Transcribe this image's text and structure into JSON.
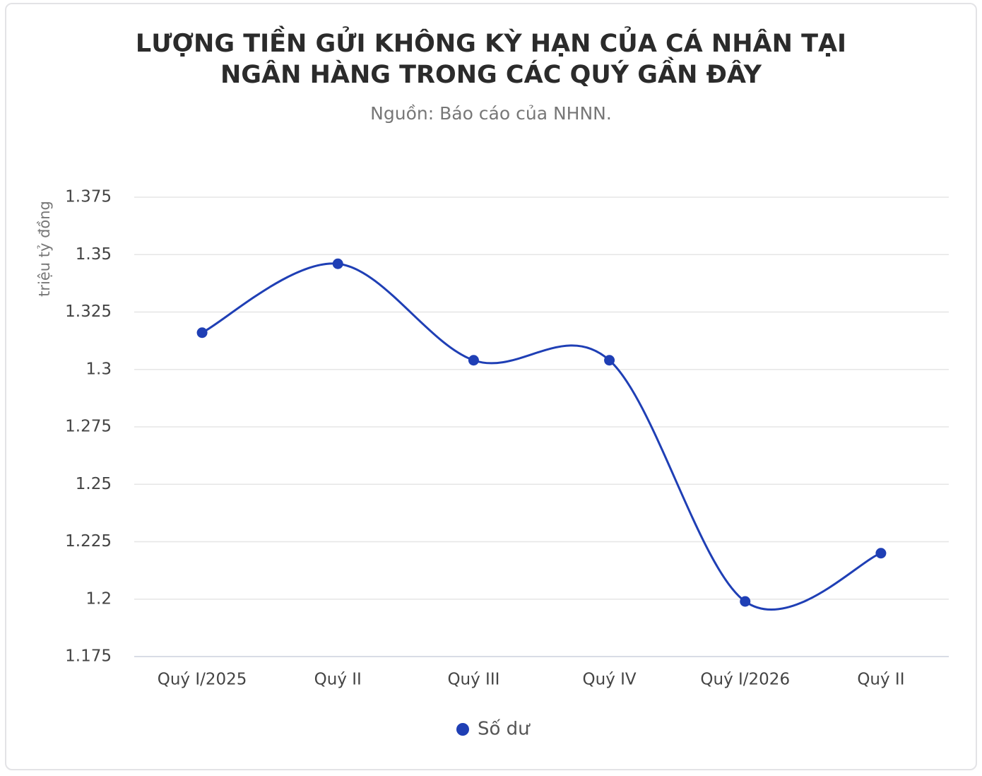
{
  "chart_data": {
    "type": "line",
    "title": "LƯỢNG TIỀN GỬI KHÔNG KỲ HẠN CỦA CÁ NHÂN TẠI NGÂN HÀNG TRONG CÁC QUÝ GẦN ĐÂY",
    "subtitle": "Nguồn: Báo cáo của NHNN.",
    "y_label": "triệu tỷ đồng",
    "categories": [
      "Quý I/2025",
      "Quý II",
      "Quý III",
      "Quý IV",
      "Quý I/2026",
      "Quý II"
    ],
    "series": [
      {
        "name": "Số dư",
        "color": "#1f3fb5",
        "values": [
          1.316,
          1.346,
          1.304,
          1.304,
          1.199,
          1.22
        ]
      }
    ],
    "ylim": [
      1.175,
      1.375
    ],
    "yticks": [
      1.175,
      1.2,
      1.225,
      1.25,
      1.275,
      1.3,
      1.325,
      1.35,
      1.375
    ],
    "grid": true,
    "smooth": true,
    "legend": "bottom"
  }
}
